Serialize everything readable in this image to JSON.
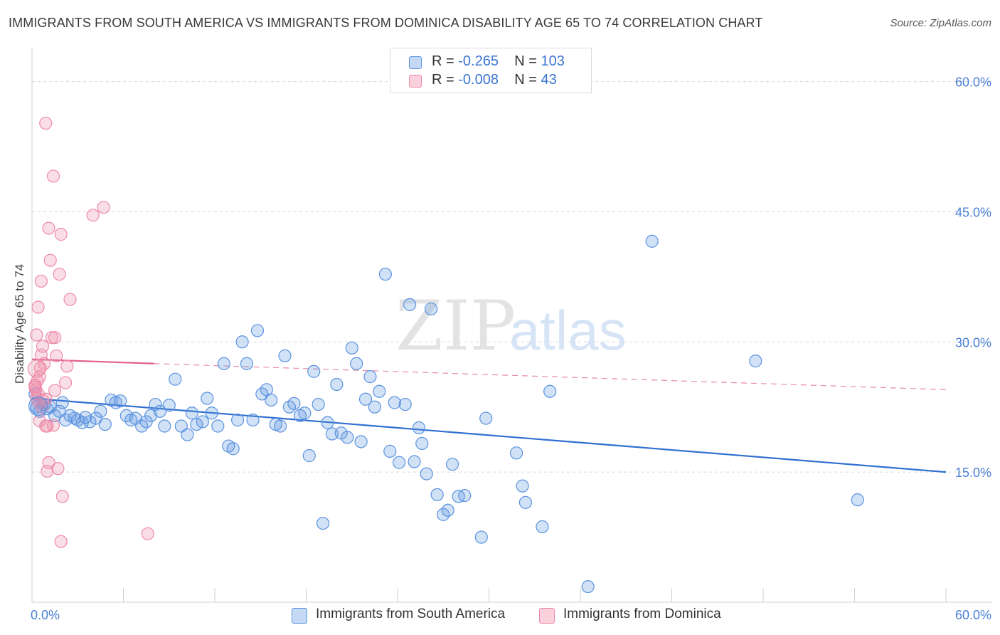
{
  "header": {
    "title": "IMMIGRANTS FROM SOUTH AMERICA VS IMMIGRANTS FROM DOMINICA DISABILITY AGE 65 TO 74 CORRELATION CHART",
    "source": "Source: ZipAtlas.com"
  },
  "watermark": {
    "zip": "ZIP",
    "atlas": "atlas"
  },
  "legend": {
    "south_america": {
      "r_label": "R =",
      "r_value": "-0.265",
      "n_label": "N =",
      "n_value": "103",
      "color": "#5b93e0"
    },
    "dominica": {
      "r_label": "R =",
      "r_value": "-0.008",
      "n_label": "N =",
      "n_value": "43",
      "color": "#ee8aa8"
    }
  },
  "chart_data": {
    "type": "scatter",
    "title": "IMMIGRANTS FROM SOUTH AMERICA VS IMMIGRANTS FROM DOMINICA DISABILITY AGE 65 TO 74 CORRELATION CHART",
    "xlabel": "",
    "ylabel": "Disability Age 65 to 74",
    "xlim": [
      0,
      60
    ],
    "ylim": [
      0,
      63
    ],
    "x_tick_labels": [
      "0.0%",
      "60.0%"
    ],
    "y_tick_labels": [
      "15.0%",
      "30.0%",
      "45.0%",
      "60.0%"
    ],
    "y_ticks": [
      15,
      30,
      45,
      60
    ],
    "grid": "horizontal dashed",
    "legend_position": "bottom-center",
    "series": [
      {
        "name": "Immigrants from South America",
        "color": "#5b93e0",
        "trend": {
          "x": [
            0,
            60
          ],
          "y": [
            23.5,
            15.0
          ],
          "style": "solid"
        },
        "points": [
          [
            0.2,
            24.0
          ],
          [
            0.3,
            22.5
          ],
          [
            0.5,
            22.0
          ],
          [
            0.8,
            22.8
          ],
          [
            1.0,
            22.3
          ],
          [
            1.2,
            22.5
          ],
          [
            1.5,
            21.5
          ],
          [
            1.8,
            22.0
          ],
          [
            2.0,
            23.0
          ],
          [
            2.2,
            21.0
          ],
          [
            2.5,
            21.5
          ],
          [
            2.8,
            21.2
          ],
          [
            3.0,
            21.0
          ],
          [
            3.3,
            20.7
          ],
          [
            3.5,
            21.3
          ],
          [
            3.8,
            20.8
          ],
          [
            4.2,
            21.2
          ],
          [
            4.5,
            22.0
          ],
          [
            4.8,
            20.5
          ],
          [
            5.2,
            23.3
          ],
          [
            5.5,
            23.0
          ],
          [
            5.8,
            23.2
          ],
          [
            6.2,
            21.5
          ],
          [
            6.5,
            21.0
          ],
          [
            6.8,
            21.2
          ],
          [
            7.2,
            20.3
          ],
          [
            7.5,
            20.8
          ],
          [
            7.8,
            21.5
          ],
          [
            8.1,
            22.8
          ],
          [
            8.4,
            22.0
          ],
          [
            8.7,
            20.3
          ],
          [
            9.0,
            22.7
          ],
          [
            9.4,
            25.7
          ],
          [
            9.8,
            20.3
          ],
          [
            10.2,
            19.3
          ],
          [
            10.5,
            21.8
          ],
          [
            10.8,
            20.5
          ],
          [
            11.2,
            20.8
          ],
          [
            11.5,
            23.5
          ],
          [
            11.8,
            21.8
          ],
          [
            12.2,
            20.3
          ],
          [
            12.6,
            27.5
          ],
          [
            12.9,
            18.0
          ],
          [
            13.2,
            17.7
          ],
          [
            13.5,
            21.0
          ],
          [
            13.8,
            30.0
          ],
          [
            14.1,
            27.5
          ],
          [
            14.5,
            21.0
          ],
          [
            14.8,
            31.3
          ],
          [
            15.1,
            24.0
          ],
          [
            15.4,
            24.5
          ],
          [
            15.7,
            23.3
          ],
          [
            16.0,
            20.5
          ],
          [
            16.3,
            20.3
          ],
          [
            16.6,
            28.4
          ],
          [
            16.9,
            22.5
          ],
          [
            17.2,
            22.9
          ],
          [
            17.6,
            21.5
          ],
          [
            17.9,
            21.8
          ],
          [
            18.2,
            16.9
          ],
          [
            18.5,
            26.6
          ],
          [
            18.8,
            22.8
          ],
          [
            19.1,
            9.1
          ],
          [
            19.4,
            20.7
          ],
          [
            19.7,
            19.4
          ],
          [
            20.0,
            25.1
          ],
          [
            20.3,
            19.5
          ],
          [
            20.7,
            19.0
          ],
          [
            21.0,
            29.3
          ],
          [
            21.3,
            27.5
          ],
          [
            21.6,
            18.5
          ],
          [
            21.9,
            23.4
          ],
          [
            22.2,
            26.0
          ],
          [
            22.5,
            22.5
          ],
          [
            22.8,
            24.3
          ],
          [
            23.2,
            37.8
          ],
          [
            23.5,
            17.4
          ],
          [
            23.8,
            23.0
          ],
          [
            24.1,
            16.1
          ],
          [
            24.5,
            22.8
          ],
          [
            24.8,
            34.3
          ],
          [
            25.1,
            16.2
          ],
          [
            25.4,
            20.1
          ],
          [
            25.6,
            18.3
          ],
          [
            25.9,
            14.8
          ],
          [
            26.2,
            33.8
          ],
          [
            26.6,
            12.4
          ],
          [
            27.0,
            10.1
          ],
          [
            27.3,
            10.6
          ],
          [
            27.6,
            15.9
          ],
          [
            28.0,
            12.2
          ],
          [
            28.4,
            12.3
          ],
          [
            29.5,
            7.5
          ],
          [
            29.8,
            21.2
          ],
          [
            31.8,
            17.2
          ],
          [
            32.2,
            13.4
          ],
          [
            32.4,
            11.5
          ],
          [
            33.5,
            8.7
          ],
          [
            34.0,
            24.3
          ],
          [
            36.5,
            1.8
          ],
          [
            40.7,
            41.6
          ],
          [
            47.5,
            27.8
          ],
          [
            54.2,
            11.8
          ]
        ]
      },
      {
        "name": "Immigrants from Dominica",
        "color": "#ee8aa8",
        "trend": {
          "x": [
            0,
            8
          ],
          "y": [
            28.0,
            27.5
          ],
          "style": "solid",
          "extended_to": [
            60,
            24.5
          ]
        },
        "points": [
          [
            0.2,
            25.0
          ],
          [
            0.25,
            24.5
          ],
          [
            0.3,
            23.5
          ],
          [
            0.35,
            25.5
          ],
          [
            0.4,
            24.0
          ],
          [
            0.45,
            23.0
          ],
          [
            0.5,
            26.0
          ],
          [
            0.55,
            27.0
          ],
          [
            0.6,
            28.5
          ],
          [
            0.65,
            22.5
          ],
          [
            0.7,
            23.3
          ],
          [
            0.3,
            30.8
          ],
          [
            0.4,
            34.0
          ],
          [
            0.5,
            20.9
          ],
          [
            0.6,
            37.0
          ],
          [
            0.7,
            29.5
          ],
          [
            0.8,
            27.5
          ],
          [
            0.9,
            20.3
          ],
          [
            1.0,
            15.1
          ],
          [
            1.0,
            20.3
          ],
          [
            1.1,
            43.1
          ],
          [
            1.1,
            16.1
          ],
          [
            1.2,
            39.4
          ],
          [
            1.3,
            30.5
          ],
          [
            1.4,
            20.4
          ],
          [
            1.5,
            24.4
          ],
          [
            1.6,
            28.4
          ],
          [
            1.7,
            15.4
          ],
          [
            1.8,
            37.8
          ],
          [
            1.9,
            42.4
          ],
          [
            2.0,
            12.2
          ],
          [
            2.2,
            25.3
          ],
          [
            2.3,
            27.2
          ],
          [
            2.5,
            34.9
          ],
          [
            0.9,
            55.2
          ],
          [
            1.4,
            49.1
          ],
          [
            4.0,
            44.6
          ],
          [
            4.7,
            45.5
          ],
          [
            1.9,
            7.0
          ],
          [
            7.6,
            7.9
          ],
          [
            0.9,
            23.4
          ],
          [
            1.5,
            30.5
          ],
          [
            0.2,
            24.8
          ]
        ]
      }
    ],
    "legend_entries": [
      "Immigrants from South America",
      "Immigrants from Dominica"
    ]
  }
}
